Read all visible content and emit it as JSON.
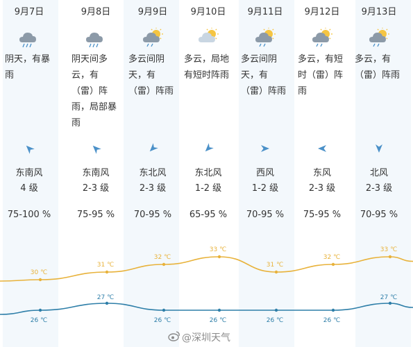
{
  "days": [
    {
      "date": "9月7日",
      "icon": "thunderstorm-icon",
      "desc": "阴天，有暴雨",
      "wind_dir": "东南风",
      "wind_level": "4 级",
      "humidity": "75-100 %",
      "high": "30 ℃",
      "low": "26 ℃",
      "high_c": 30,
      "low_c": 26,
      "wind_angle": 135
    },
    {
      "date": "9月8日",
      "icon": "thunderstorm-icon",
      "desc": "阴天间多云，有（雷）阵雨，局部暴雨",
      "wind_dir": "东南风",
      "wind_level": "2-3 级",
      "humidity": "75-95 %",
      "high": "31 ℃",
      "low": "27 ℃",
      "high_c": 31,
      "low_c": 27,
      "wind_angle": 135
    },
    {
      "date": "9月9日",
      "icon": "partly-cloudy-rain-icon",
      "desc": "多云间阴天，有（雷）阵雨",
      "wind_dir": "东北风",
      "wind_level": "2-3 级",
      "humidity": "70-95 %",
      "high": "32 ℃",
      "low": "26 ℃",
      "high_c": 32,
      "low_c": 26,
      "wind_angle": 45
    },
    {
      "date": "9月10日",
      "icon": "partly-cloudy-icon",
      "desc": "多云，局地有短时阵雨",
      "wind_dir": "东北风",
      "wind_level": "1-2 级",
      "humidity": "65-95 %",
      "high": "33 ℃",
      "low": "26 ℃",
      "high_c": 33,
      "low_c": 26,
      "wind_angle": 45
    },
    {
      "date": "9月11日",
      "icon": "partly-cloudy-rain-icon",
      "desc": "多云间阴天，有（雷）阵雨",
      "wind_dir": "西风",
      "wind_level": "1-2 级",
      "humidity": "70-95 %",
      "high": "31 ℃",
      "low": "26 ℃",
      "high_c": 31,
      "low_c": 26,
      "wind_angle": 270
    },
    {
      "date": "9月12日",
      "icon": "partly-cloudy-rain-icon",
      "desc": "多云，有短时（雷）阵雨",
      "wind_dir": "东风",
      "wind_level": "2-3 级",
      "humidity": "75-95 %",
      "high": "32 ℃",
      "low": "26 ℃",
      "high_c": 32,
      "low_c": 26,
      "wind_angle": 90
    },
    {
      "date": "9月13日",
      "icon": "partly-cloudy-rain-icon",
      "desc": "多云，有（雷）阵雨",
      "wind_dir": "北风",
      "wind_level": "2-3 级",
      "humidity": "70-95 %",
      "high": "33 ℃",
      "low": "27 ℃",
      "high_c": 33,
      "low_c": 27,
      "wind_angle": 0
    }
  ],
  "colors": {
    "high_line": "#e8b23a",
    "low_line": "#2d7ea8",
    "column_bg": "#f3f8fc",
    "wind_arrow": "#4a90c8"
  },
  "watermark": "@深圳天气"
}
